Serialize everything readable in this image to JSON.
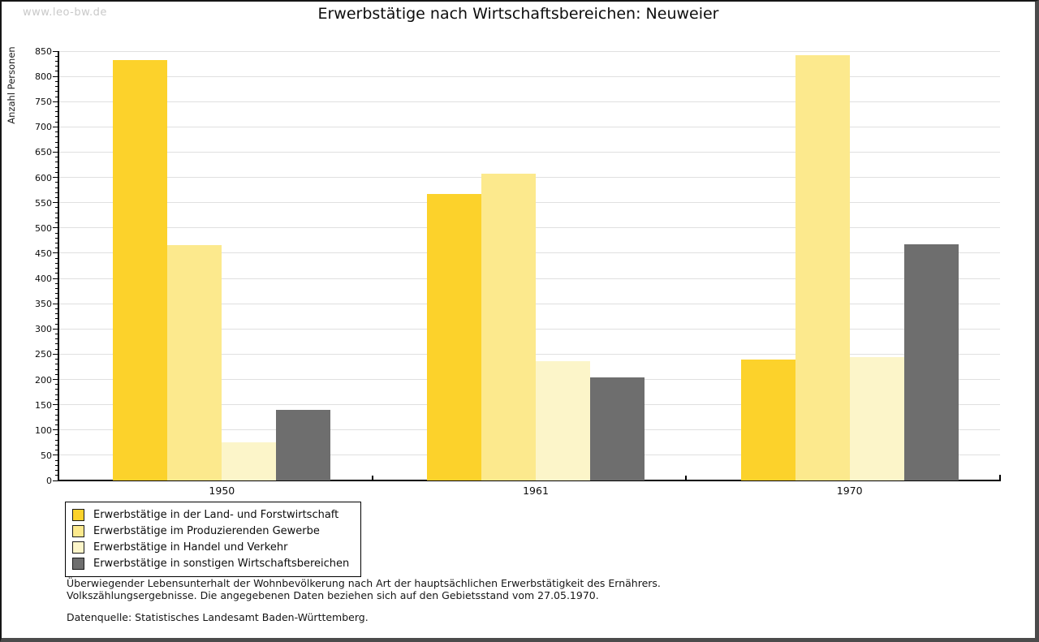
{
  "watermark": "www.leo-bw.de",
  "title": "Erwerbstätige nach Wirtschaftsbereichen: Neuweier",
  "footnotes": [
    "Überwiegender Lebensunterhalt der Wohnbevölkerung nach Art der hauptsächlichen Erwerbstätigkeit des Ernährers.",
    "Volkszählungsergebnisse. Die angegebenen Daten beziehen sich auf den Gebietsstand vom 27.05.1970."
  ],
  "datasource": "Datenquelle: Statistisches Landesamt Baden-Württemberg.",
  "chart_data": {
    "type": "bar",
    "title": "Erwerbstätige nach Wirtschaftsbereichen: Neuweier",
    "xlabel": "",
    "ylabel": "Anzahl Personen",
    "categories": [
      "1950",
      "1961",
      "1970"
    ],
    "series": [
      {
        "name": "Erwerbstätige in der Land- und Forstwirtschaft",
        "color": "#FCD22B",
        "values": [
          832,
          567,
          239
        ]
      },
      {
        "name": "Erwerbstätige im Produzierenden Gewerbe",
        "color": "#FCE98D",
        "values": [
          466,
          608,
          842
        ]
      },
      {
        "name": "Erwerbstätige in Handel und Verkehr",
        "color": "#FCF5C9",
        "values": [
          75,
          236,
          244
        ]
      },
      {
        "name": "Erwerbstätige in sonstigen Wirtschaftsbereichen",
        "color": "#6E6E6E",
        "values": [
          140,
          204,
          468
        ]
      }
    ],
    "ylim": [
      0,
      850
    ],
    "ytick_step": 50,
    "yminor_step": 10,
    "grid": true,
    "grid_color": "#e0e0e0",
    "axis_color": "#000000",
    "legend_position": "bottom-left"
  }
}
